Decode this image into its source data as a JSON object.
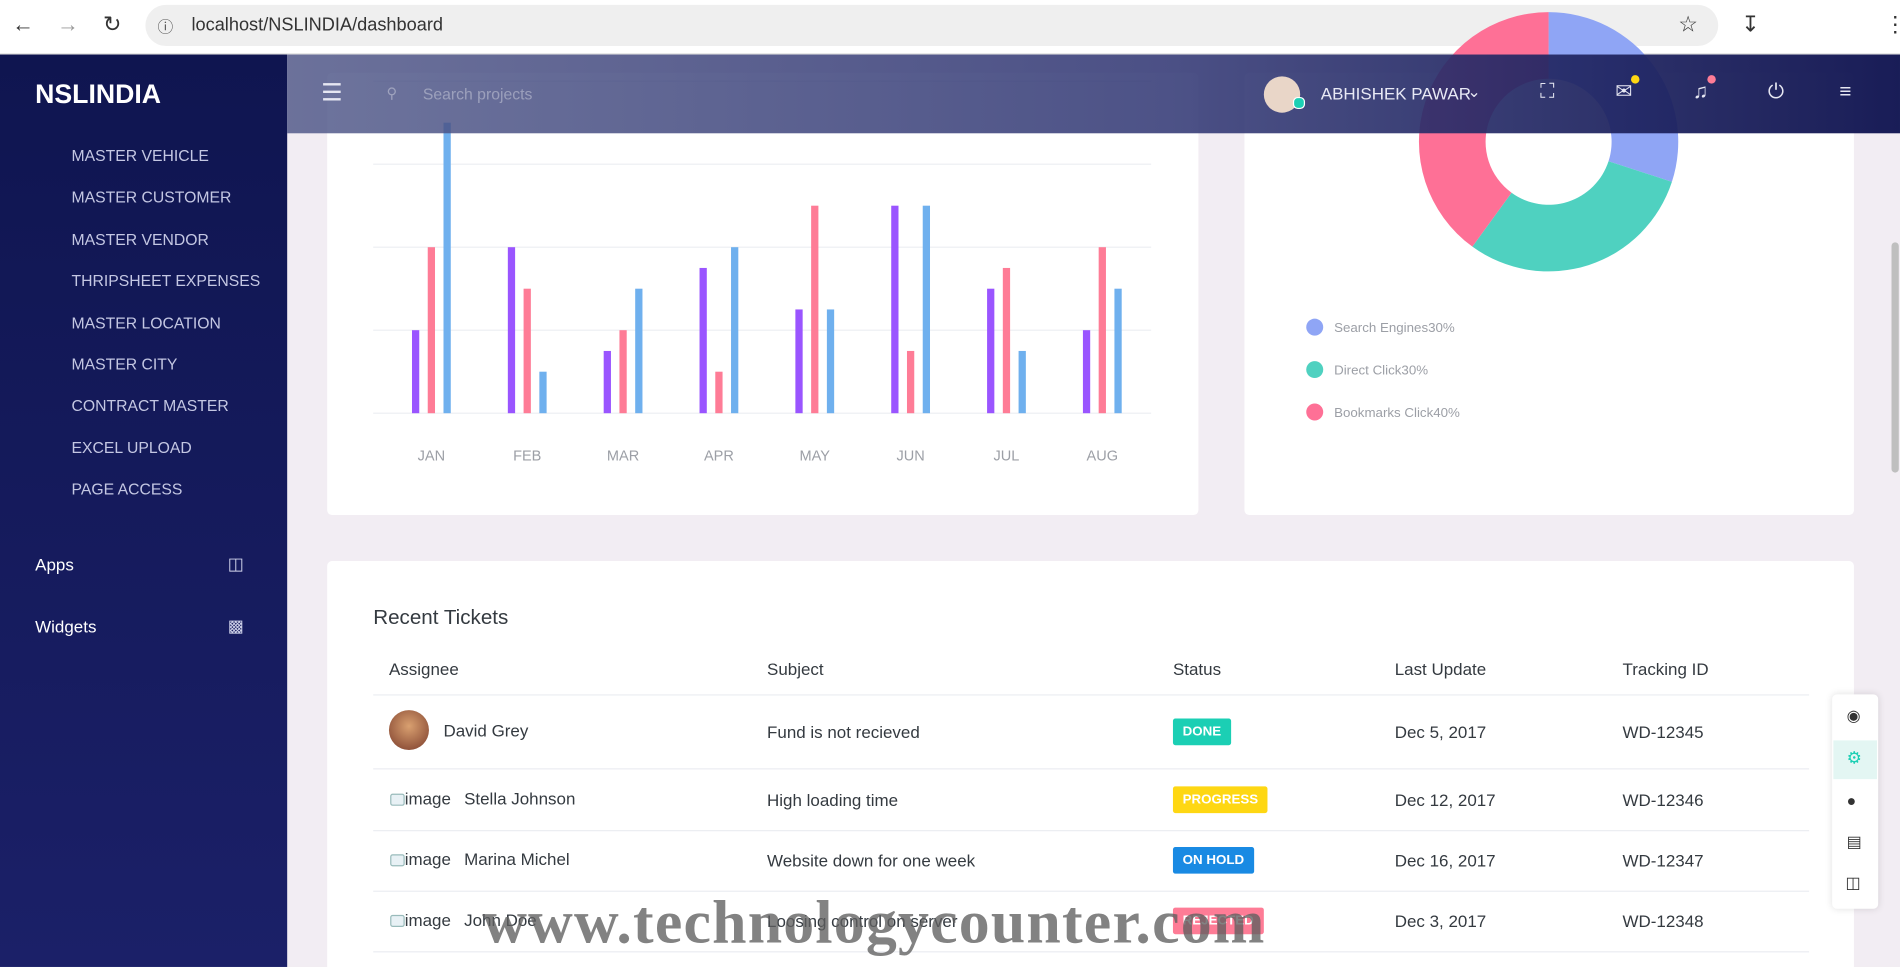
{
  "browser": {
    "url": "localhost/NSLINDIA/dashboard"
  },
  "sidebar": {
    "brand": "NSLINDIA",
    "items": [
      "MASTER VEHICLE",
      "MASTER CUSTOMER",
      "MASTER VENDOR",
      "THRIPSHEET EXPENSES",
      "MASTER LOCATION",
      "MASTER CITY",
      "CONTRACT MASTER",
      "EXCEL UPLOAD",
      "PAGE ACCESS"
    ],
    "sections": [
      "Apps",
      "Widgets"
    ]
  },
  "header": {
    "search_placeholder": "Search projects",
    "user": "ABHISHEK PAWAR"
  },
  "chart_data": [
    {
      "type": "bar",
      "categories": [
        "JAN",
        "FEB",
        "MAR",
        "APR",
        "MAY",
        "JUN",
        "JUL",
        "AUG"
      ],
      "ylim": [
        0,
        80
      ],
      "grid": true,
      "series": [
        {
          "color": "#9a55ff",
          "values": [
            20,
            40,
            15,
            35,
            25,
            50,
            30,
            20
          ]
        },
        {
          "color": "#fe7c96",
          "values": [
            40,
            30,
            20,
            10,
            50,
            15,
            35,
            40
          ]
        },
        {
          "color": "#6fb0ee",
          "values": [
            70,
            10,
            30,
            40,
            25,
            50,
            15,
            30
          ]
        }
      ]
    },
    {
      "type": "pie",
      "categories": [
        "Search Engines",
        "Direct Click",
        "Bookmarks Click"
      ],
      "values": [
        30,
        30,
        40
      ],
      "value_labels": [
        "30%",
        "30%",
        "40%"
      ],
      "colors": [
        "#8fa5f5",
        "#4fd1c0",
        "#fe7096"
      ]
    }
  ],
  "tickets": {
    "title": "Recent Tickets",
    "columns": [
      "Assignee",
      "Subject",
      "Status",
      "Last Update",
      "Tracking ID"
    ],
    "rows": [
      {
        "assignee": "David Grey",
        "subject": "Fund is not recieved",
        "status": "DONE",
        "color": "#1bcfb4",
        "updated": "Dec 5, 2017",
        "id": "WD-12345"
      },
      {
        "image_alt": "image",
        "assignee": "Stella Johnson",
        "subject": "High loading time",
        "status": "PROGRESS",
        "color": "#fed713",
        "updated": "Dec 12, 2017",
        "id": "WD-12346"
      },
      {
        "image_alt": "image",
        "assignee": "Marina Michel",
        "subject": "Website down for one week",
        "status": "ON HOLD",
        "color": "#198ae3",
        "updated": "Dec 16, 2017",
        "id": "WD-12347"
      },
      {
        "image_alt": "image",
        "assignee": "John Doe",
        "subject": "Loosing control on server",
        "status": "REJECTED",
        "color": "#fe7c96",
        "updated": "Dec 3, 2017",
        "id": "WD-12348"
      }
    ]
  },
  "watermark": "www.technologycounter.com"
}
